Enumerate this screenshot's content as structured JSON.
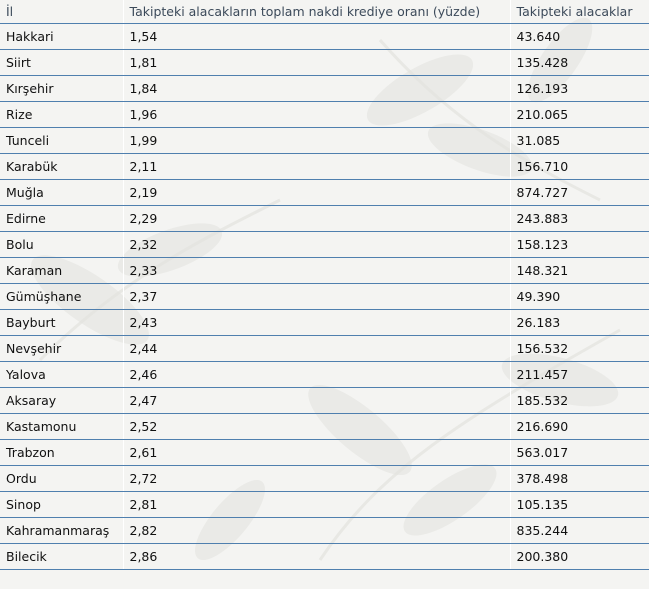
{
  "table": {
    "headers": [
      "İl",
      "Takipteki alacakların toplam nakdi krediye oranı (yüzde)",
      "Takipteki alacaklar"
    ],
    "rows": [
      [
        "Hakkari",
        "1,54",
        "43.640"
      ],
      [
        "Siirt",
        "1,81",
        "135.428"
      ],
      [
        "Kırşehir",
        "1,84",
        "126.193"
      ],
      [
        "Rize",
        "1,96",
        "210.065"
      ],
      [
        "Tunceli",
        "1,99",
        "31.085"
      ],
      [
        "Karabük",
        "2,11",
        "156.710"
      ],
      [
        "Muğla",
        "2,19",
        "874.727"
      ],
      [
        "Edirne",
        "2,29",
        "243.883"
      ],
      [
        "Bolu",
        "2,32",
        "158.123"
      ],
      [
        "Karaman",
        "2,33",
        "148.321"
      ],
      [
        "Gümüşhane",
        "2,37",
        "49.390"
      ],
      [
        "Bayburt",
        "2,43",
        "26.183"
      ],
      [
        "Nevşehir",
        "2,44",
        "156.532"
      ],
      [
        "Yalova",
        "2,46",
        "211.457"
      ],
      [
        "Aksaray",
        "2,47",
        "185.532"
      ],
      [
        "Kastamonu",
        "2,52",
        "216.690"
      ],
      [
        "Trabzon",
        "2,61",
        "563.017"
      ],
      [
        "Ordu",
        "2,72",
        "378.498"
      ],
      [
        "Sinop",
        "2,81",
        "105.135"
      ],
      [
        "Kahramanmaraş",
        "2,82",
        "835.244"
      ],
      [
        "Bilecik",
        "2,86",
        "200.380"
      ]
    ]
  },
  "colors": {
    "row_rule": "#4f7fae",
    "header_text": "#3c4a5a",
    "background": "#f4f4f2"
  }
}
